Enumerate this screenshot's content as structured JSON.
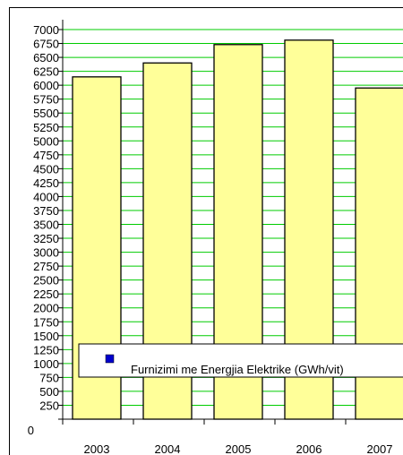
{
  "chart_data": {
    "type": "bar",
    "title": "",
    "xlabel": "",
    "ylabel": "",
    "categories": [
      "2003",
      "2004",
      "2005",
      "2006",
      "2007"
    ],
    "series": [
      {
        "name": "Furnizimi me Energjia Elektrike (GWh/vit)",
        "values": [
          6150,
          6400,
          6730,
          6810,
          5950
        ]
      }
    ],
    "ylim": [
      0,
      7000
    ],
    "y_ticks": [
      "0",
      "250",
      "500",
      "750",
      "1000",
      "1250",
      "1500",
      "1750",
      "2000",
      "2250",
      "2500",
      "2750",
      "3000",
      "3250",
      "3500",
      "3750",
      "4000",
      "4250",
      "4500",
      "4750",
      "5000",
      "5250",
      "5500",
      "5750",
      "6000",
      "6250",
      "6500",
      "6750",
      "7000"
    ],
    "grid": true,
    "legend_position": "bottom",
    "colors": {
      "bar_fill": "#ffff99",
      "bar_stroke": "#000000",
      "grid": "#00cc00",
      "legend_marker": "#0000cc"
    }
  }
}
